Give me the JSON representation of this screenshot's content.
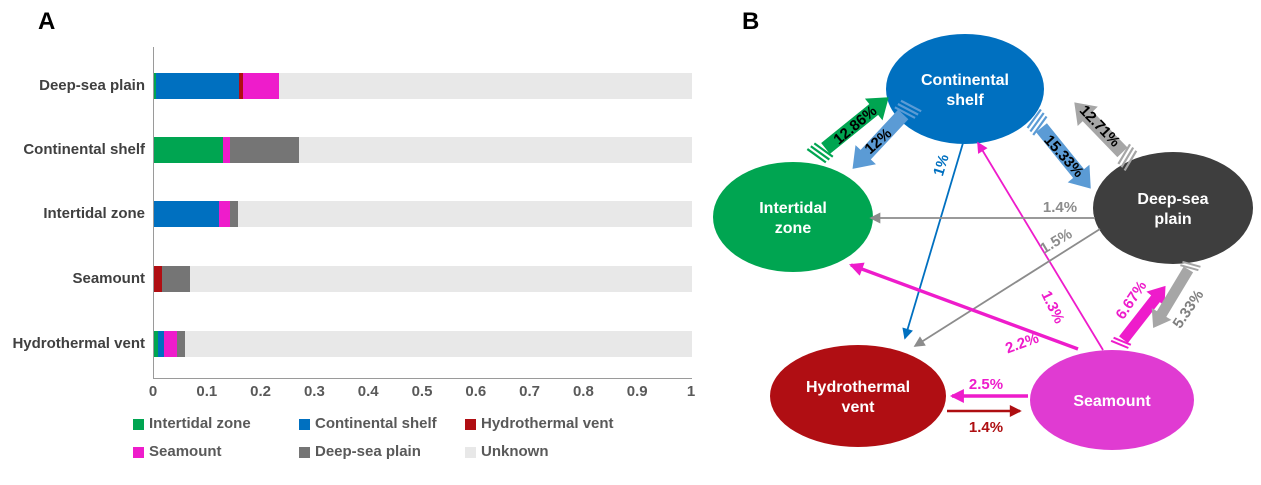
{
  "panel_a": {
    "label": "A"
  },
  "panel_b": {
    "label": "B",
    "nodes": {
      "continental_shelf": {
        "label_line1": "Continental",
        "label_line2": "shelf",
        "color": "#0070C0"
      },
      "intertidal_zone": {
        "label_line1": "Intertidal",
        "label_line2": "zone",
        "color": "#00A551"
      },
      "deep_sea_plain": {
        "label_line1": "Deep-sea",
        "label_line2": "plain",
        "color": "#3E3E3E"
      },
      "hydrothermal_vent": {
        "label_line1": "Hydrothermal",
        "label_line2": "vent",
        "color": "#B00E13"
      },
      "seamount": {
        "label": "Seamount",
        "color": "#E03BD2"
      }
    },
    "edges": {
      "intertidal_to_shelf": {
        "from": "Intertidal zone",
        "to": "Continental shelf",
        "value": "12.86%",
        "color": "#00A551",
        "label_color": "#000000",
        "style": "block-arrow"
      },
      "shelf_to_intertidal": {
        "from": "Continental shelf",
        "to": "Intertidal zone",
        "value": "12%",
        "color": "#5B9BD5",
        "label_color": "#000000",
        "style": "block-arrow"
      },
      "shelf_to_deepsea": {
        "from": "Continental shelf",
        "to": "Deep-sea plain",
        "value": "15.33%",
        "color": "#5B9BD5",
        "label_color": "#000000",
        "style": "block-arrow"
      },
      "deepsea_to_shelf": {
        "from": "Deep-sea plain",
        "to": "Continental shelf",
        "value": "12.71%",
        "color": "#A6A6A6",
        "label_color": "#000000",
        "style": "block-arrow"
      },
      "seamount_to_deepsea": {
        "from": "Seamount",
        "to": "Deep-sea plain",
        "value": "6.67%",
        "color": "#EE1CCB",
        "label_color": "#EE1CCB",
        "style": "block-arrow"
      },
      "deepsea_to_seamount": {
        "from": "Deep-sea plain",
        "to": "Seamount",
        "value": "5.33%",
        "color": "#A6A6A6",
        "label_color": "#7F7F7F",
        "style": "block-arrow"
      },
      "shelf_to_hydrothermal": {
        "from": "Continental shelf",
        "to": "Hydrothermal vent",
        "value": "1%",
        "color": "#0070C0",
        "label_color": "#0070C0",
        "style": "line"
      },
      "seamount_to_shelf": {
        "from": "Seamount",
        "to": "Continental shelf",
        "value": "1.3%",
        "color": "#EE1CCB",
        "label_color": "#EE1CCB",
        "style": "line"
      },
      "deepsea_to_intertidal": {
        "from": "Deep-sea plain",
        "to": "Intertidal zone",
        "value": "1.4%",
        "color": "#8C8C8C",
        "label_color": "#8C8C8C",
        "style": "line"
      },
      "deepsea_to_hydrothermal": {
        "from": "Deep-sea plain",
        "to": "Hydrothermal vent",
        "value": "1.5%",
        "color": "#8C8C8C",
        "label_color": "#8C8C8C",
        "style": "line"
      },
      "seamount_to_intertidal": {
        "from": "Seamount",
        "to": "Intertidal zone",
        "value": "2.2%",
        "color": "#EE1CCB",
        "label_color": "#EE1CCB",
        "style": "line"
      },
      "seamount_to_hydrothermal": {
        "from": "Seamount",
        "to": "Hydrothermal vent",
        "value": "2.5%",
        "color": "#EE1CCB",
        "label_color": "#EE1CCB",
        "style": "line"
      },
      "hydrothermal_to_seamount": {
        "from": "Hydrothermal vent",
        "to": "Seamount",
        "value": "1.4%",
        "color": "#AE0E11",
        "label_color": "#AE0E11",
        "style": "line"
      }
    }
  },
  "palette": {
    "blue": "#0070C0",
    "light_blue": "#5B9BD5",
    "green": "#00A551",
    "magenta": "#EE1CCB",
    "magenta_node": "#E03BD2",
    "dark_red": "#AE0E11",
    "node_dark_gray": "#3E3E3E",
    "arrow_gray": "#A6A6A6",
    "line_gray": "#8C8C8C",
    "bar_gray": "#757575",
    "unknown_gray": "#E8E8E8",
    "axis_text": "#595959"
  },
  "chart_data": {
    "type": "stacked_bar_horizontal",
    "title": "",
    "xlabel": "",
    "ylabel": "",
    "xlim": [
      0,
      1
    ],
    "grid": false,
    "legend_position": "bottom",
    "categories": [
      "Deep-sea plain",
      "Continental shelf",
      "Intertidal zone",
      "Seamount",
      "Hydrothermal vent"
    ],
    "x_ticks": [
      "0",
      "0.1",
      "0.2",
      "0.3",
      "0.4",
      "0.5",
      "0.6",
      "0.7",
      "0.8",
      "0.9",
      "1"
    ],
    "series": [
      {
        "name": "Intertidal zone",
        "color": "#00A551",
        "values": [
          0.004,
          0.1286,
          0,
          0,
          0.008
        ]
      },
      {
        "name": "Continental shelf",
        "color": "#0070C0",
        "values": [
          0.1533,
          0,
          0.12,
          0,
          0.01
        ]
      },
      {
        "name": "Hydrothermal vent",
        "color": "#B00E13",
        "values": [
          0.009,
          0,
          0,
          0.014,
          0
        ]
      },
      {
        "name": "Seamount",
        "color": "#EE1CCB",
        "values": [
          0.0667,
          0.013,
          0.022,
          0,
          0.025
        ]
      },
      {
        "name": "Deep-sea plain",
        "color": "#757575",
        "values": [
          0,
          0.1271,
          0.014,
          0.0533,
          0.015
        ]
      },
      {
        "name": "Unknown",
        "color": "#E8E8E8",
        "values": [
          0.767,
          0.731,
          0.844,
          0.9327,
          0.942
        ]
      }
    ]
  }
}
